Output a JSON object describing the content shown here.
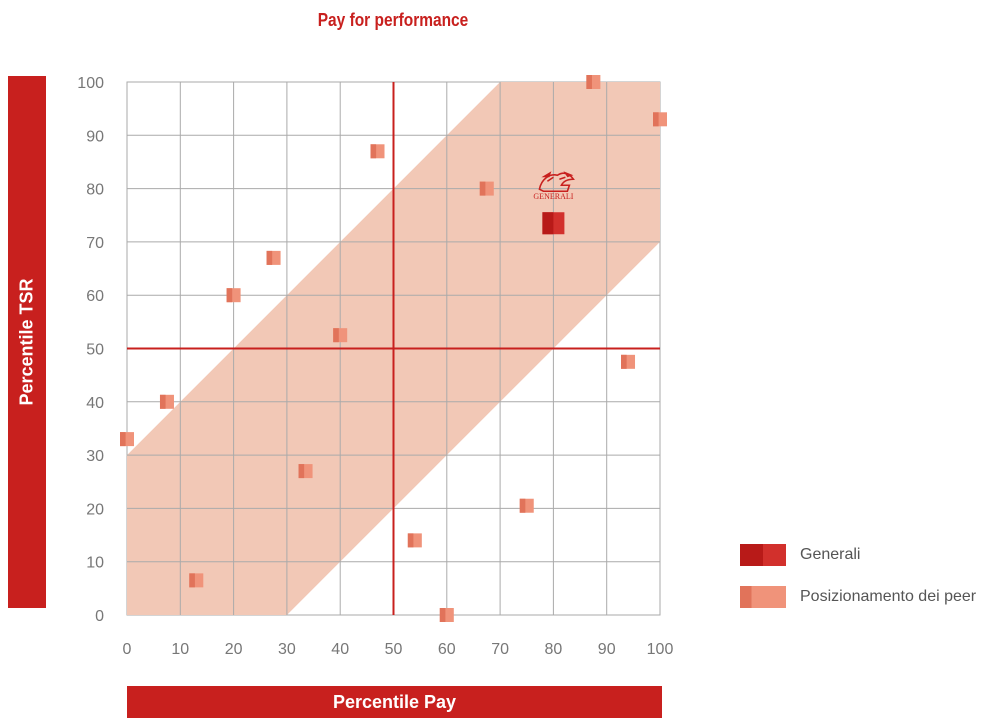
{
  "chart_data": {
    "type": "scatter",
    "title": "Pay for performance",
    "xlabel": "Percentile Pay",
    "ylabel": "Percentile TSR",
    "xlim": [
      0,
      100
    ],
    "ylim": [
      0,
      100
    ],
    "xticks": [
      "0",
      "10",
      "20",
      "30",
      "40",
      "50",
      "60",
      "70",
      "80",
      "90",
      "100"
    ],
    "yticks": [
      "0",
      "10",
      "20",
      "30",
      "40",
      "50",
      "60",
      "70",
      "80",
      "90",
      "100"
    ],
    "grid": true,
    "reference_lines": {
      "x": 50,
      "y": 50
    },
    "band": {
      "offset_above": 30,
      "offset_below": 30
    },
    "legend_position": "right",
    "series": [
      {
        "name": "Generali",
        "color": "#c8201e",
        "logo_text": "GENERALI",
        "points": [
          {
            "x": 80,
            "y": 73.5
          }
        ]
      },
      {
        "name": "Posizionamento dei peer",
        "color": "#ea8669",
        "points": [
          {
            "x": 0,
            "y": 33
          },
          {
            "x": 7.5,
            "y": 40
          },
          {
            "x": 13,
            "y": 6.5
          },
          {
            "x": 20,
            "y": 60
          },
          {
            "x": 27.5,
            "y": 67
          },
          {
            "x": 33.5,
            "y": 27
          },
          {
            "x": 40,
            "y": 52.5
          },
          {
            "x": 47,
            "y": 87
          },
          {
            "x": 54,
            "y": 14
          },
          {
            "x": 60,
            "y": 0
          },
          {
            "x": 67.5,
            "y": 80
          },
          {
            "x": 75,
            "y": 20.5
          },
          {
            "x": 87.5,
            "y": 100
          },
          {
            "x": 94,
            "y": 47.5
          },
          {
            "x": 100,
            "y": 93
          }
        ]
      }
    ]
  }
}
